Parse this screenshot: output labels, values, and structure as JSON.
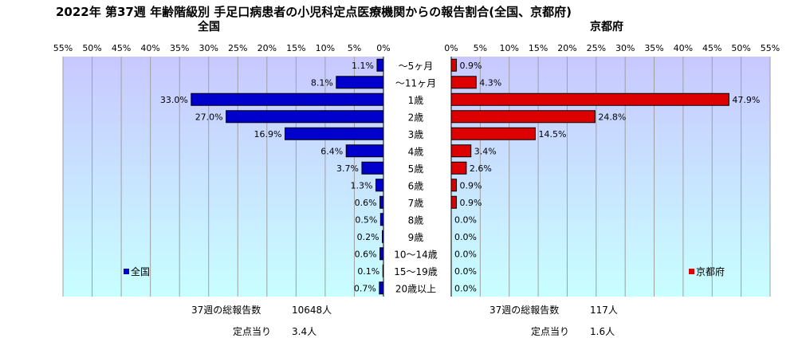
{
  "chart_data": {
    "type": "bar",
    "title": "2022年 第37週 年齢階級別 手足口病患者の小児科定点医療機関からの報告割合(全国、京都府)",
    "categories": [
      "～5ヶ月",
      "～11ヶ月",
      "1歳",
      "2歳",
      "3歳",
      "4歳",
      "5歳",
      "6歳",
      "7歳",
      "8歳",
      "9歳",
      "10～14歳",
      "15～19歳",
      "20歳以上"
    ],
    "unit": "%",
    "xlim": [
      0,
      55
    ],
    "grid": true,
    "ticks": [
      0,
      5,
      10,
      15,
      20,
      25,
      30,
      35,
      40,
      45,
      50,
      55
    ],
    "tick_labels_left": [
      "55%",
      "50%",
      "45%",
      "40%",
      "35%",
      "30%",
      "25%",
      "20%",
      "15%",
      "10%",
      "5%",
      "0%"
    ],
    "tick_labels_right": [
      "0%",
      "5%",
      "10%",
      "15%",
      "20%",
      "25%",
      "30%",
      "35%",
      "40%",
      "45%",
      "50%",
      "55%"
    ],
    "series": [
      {
        "name": "全国",
        "panel_title": "全国",
        "color": "#0000cc",
        "plot_bg_top": "#c8c8ff",
        "plot_bg_bottom": "#c8ffff",
        "legend_position": "bottom-left",
        "values": [
          1.1,
          8.1,
          33.0,
          27.0,
          16.9,
          6.4,
          3.7,
          1.3,
          0.6,
          0.5,
          0.2,
          0.6,
          0.1,
          0.7
        ],
        "labels": [
          "1.1%",
          "8.1%",
          "33.0%",
          "27.0%",
          "16.9%",
          "6.4%",
          "3.7%",
          "1.3%",
          "0.6%",
          "0.5%",
          "0.2%",
          "0.6%",
          "0.1%",
          "0.7%"
        ],
        "total_label": "37週の総報告数",
        "total_value": "10648人",
        "per_site_label": "定点当り",
        "per_site_value": "3.4人"
      },
      {
        "name": "京都府",
        "panel_title": "京都府",
        "color": "#dd0000",
        "plot_bg_top": "#c8c8ff",
        "plot_bg_bottom": "#c8ffff",
        "legend_position": "bottom-right",
        "values": [
          0.9,
          4.3,
          47.9,
          24.8,
          14.5,
          3.4,
          2.6,
          0.9,
          0.9,
          0.0,
          0.0,
          0.0,
          0.0,
          0.0
        ],
        "labels": [
          "0.9%",
          "4.3%",
          "47.9%",
          "24.8%",
          "14.5%",
          "3.4%",
          "2.6%",
          "0.9%",
          "0.9%",
          "0.0%",
          "0.0%",
          "0.0%",
          "0.0%",
          "0.0%"
        ],
        "total_label": "37週の総報告数",
        "total_value": "117人",
        "per_site_label": "定点当り",
        "per_site_value": "1.6人"
      }
    ]
  }
}
